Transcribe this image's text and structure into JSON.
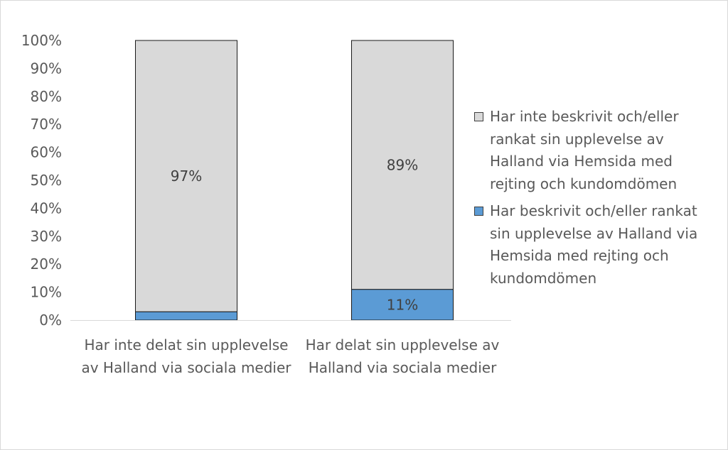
{
  "chart_data": {
    "type": "bar",
    "stacked": true,
    "categories": [
      [
        "Har inte delat sin upplevelse",
        "av Halland via sociala medier"
      ],
      [
        "Har delat sin upplevelse av",
        "Halland via sociala medier"
      ]
    ],
    "series": [
      {
        "name": "Har beskrivit och/eller rankat sin upplevelse av Halland via Hemsida med rejting och kundomdömen",
        "color": "#5b9bd5",
        "values": [
          3,
          11
        ],
        "data_labels": [
          "",
          "11%"
        ]
      },
      {
        "name": "Har inte beskrivit och/eller rankat sin upplevelse av Halland via Hemsida med rejting och kundomdömen",
        "color": "#d9d9d9",
        "values": [
          97,
          89
        ],
        "data_labels": [
          "97%",
          "89%"
        ]
      }
    ],
    "ylim": [
      0,
      100
    ],
    "yticks": [
      "0%",
      "10%",
      "20%",
      "30%",
      "40%",
      "50%",
      "60%",
      "70%",
      "80%",
      "90%",
      "100%"
    ],
    "grid": false,
    "legend_position": "right",
    "title": "",
    "xlabel": "",
    "ylabel": ""
  },
  "legend": {
    "items": [
      {
        "lines": [
          "Har inte beskrivit och/eller",
          "rankat sin upplevelse av",
          "Halland via Hemsida med",
          "rejting och kundomdömen"
        ],
        "color": "#d9d9d9"
      },
      {
        "lines": [
          "Har beskrivit och/eller rankat",
          "sin upplevelse av Halland via",
          "Hemsida med rejting och",
          "kundomdömen"
        ],
        "color": "#5b9bd5"
      }
    ]
  }
}
